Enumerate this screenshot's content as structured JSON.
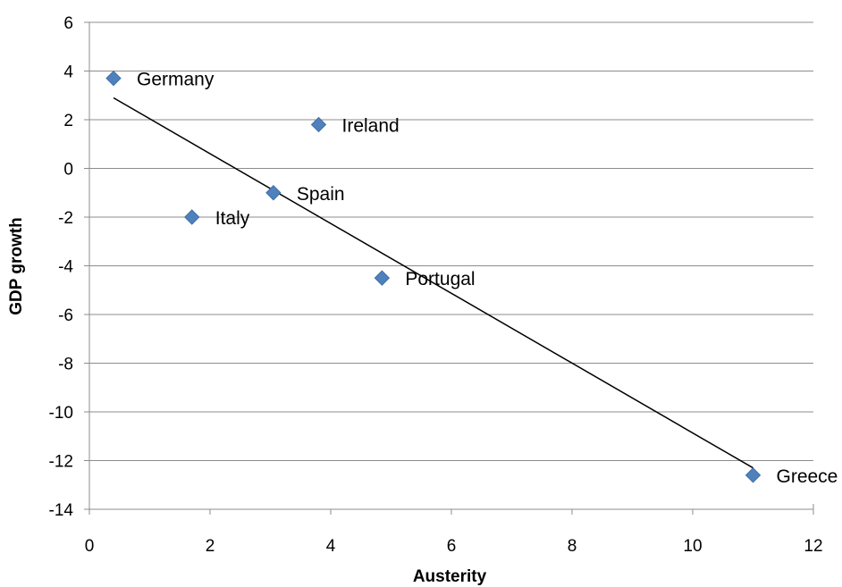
{
  "chart_data": {
    "type": "scatter",
    "title": "",
    "xlabel": "Austerity",
    "ylabel": "GDP growth",
    "xlim": [
      0,
      12
    ],
    "ylim": [
      -14,
      6
    ],
    "xticks": [
      0,
      2,
      4,
      6,
      8,
      10,
      12
    ],
    "yticks": [
      6,
      4,
      2,
      0,
      -2,
      -4,
      -6,
      -8,
      -10,
      -12,
      -14
    ],
    "grid": "horizontal",
    "marker_color": "#4f81bd",
    "points": [
      {
        "label": "Germany",
        "x": 0.4,
        "y": 3.7
      },
      {
        "label": "Ireland",
        "x": 3.8,
        "y": 1.8
      },
      {
        "label": "Spain",
        "x": 3.05,
        "y": -1.0
      },
      {
        "label": "Italy",
        "x": 1.7,
        "y": -2.0
      },
      {
        "label": "Portugal",
        "x": 4.85,
        "y": -4.5
      },
      {
        "label": "Greece",
        "x": 11.0,
        "y": -12.6
      }
    ],
    "trendline": {
      "type": "linear",
      "x": [
        0.4,
        11.0
      ],
      "y": [
        2.9,
        -12.3
      ]
    }
  }
}
